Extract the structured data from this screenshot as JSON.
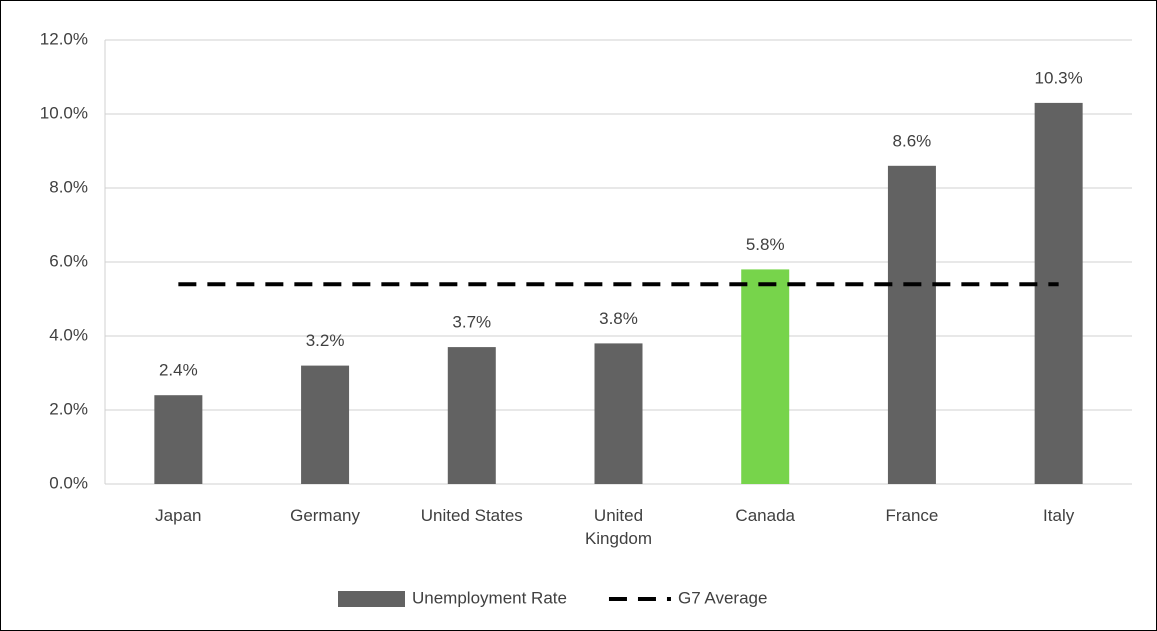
{
  "chart_data": {
    "type": "bar",
    "categories": [
      "Japan",
      "Germany",
      "United States",
      "United Kingdom",
      "Canada",
      "France",
      "Italy"
    ],
    "series": [
      {
        "name": "Unemployment Rate",
        "type": "bar",
        "color": "#626262",
        "colors": [
          "#626262",
          "#626262",
          "#626262",
          "#626262",
          "#77d44b",
          "#626262",
          "#626262"
        ],
        "values": [
          2.4,
          3.2,
          3.7,
          3.8,
          5.8,
          8.6,
          10.3
        ],
        "value_labels": [
          "2.4%",
          "3.2%",
          "3.7%",
          "3.8%",
          "5.8%",
          "8.6%",
          "10.3%"
        ]
      },
      {
        "name": "G7 Average",
        "type": "line",
        "color": "#000000",
        "dashed": true,
        "values": [
          5.4,
          5.4,
          5.4,
          5.4,
          5.4,
          5.4,
          5.4
        ]
      }
    ],
    "ylim": [
      0,
      12
    ],
    "yticks": [
      {
        "value": 0,
        "label": "0.0%"
      },
      {
        "value": 2,
        "label": "2.0%"
      },
      {
        "value": 4,
        "label": "4.0%"
      },
      {
        "value": 6,
        "label": "6.0%"
      },
      {
        "value": 8,
        "label": "8.0%"
      },
      {
        "value": 10,
        "label": "10.0%"
      },
      {
        "value": 12,
        "label": "12.0%"
      }
    ],
    "grid": true,
    "legend": "bottom"
  }
}
